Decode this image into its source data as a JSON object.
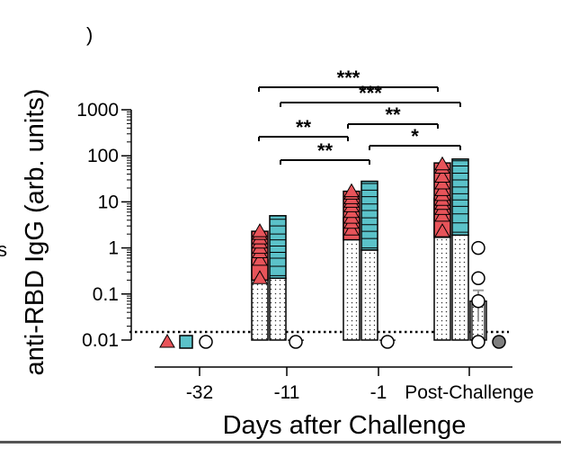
{
  "chart_data": {
    "type": "bar",
    "title": "",
    "xlabel": "Days after Challenge",
    "ylabel": "anti-RBD IgG (arb. units)",
    "yscale": "log",
    "ylim": [
      0.01,
      1000
    ],
    "yticks": [
      {
        "value": 0.01,
        "label": "0.01"
      },
      {
        "value": 0.1,
        "label": "0.1"
      },
      {
        "value": 1,
        "label": "1"
      },
      {
        "value": 10,
        "label": "10"
      },
      {
        "value": 100,
        "label": "100"
      },
      {
        "value": 1000,
        "label": "1000"
      }
    ],
    "categories": [
      "-32",
      "-11",
      "-1",
      "Post-Challenge"
    ],
    "detection_limit": 0.015,
    "grid": false,
    "legend": "none",
    "series": [
      {
        "marker": "triangle",
        "color": "#e8545a",
        "values": [
          0.01,
          0.55,
          4.5,
          12
        ],
        "ranges": [
          null,
          [
            0.2,
            2.3
          ],
          [
            1.5,
            17
          ],
          [
            1.7,
            70
          ]
        ],
        "points": [
          [
            0.01
          ],
          [
            0.22,
            0.55,
            0.8,
            1.0,
            1.3,
            1.6,
            2.0,
            2.3
          ],
          [
            2.5,
            3.5,
            4.5,
            6,
            8,
            10,
            12,
            15,
            17
          ],
          [
            2.3,
            5,
            7,
            9,
            11,
            14,
            18,
            25,
            35,
            55,
            65
          ]
        ]
      },
      {
        "marker": "square",
        "color": "#5bc2c9",
        "values": [
          0.01,
          0.22,
          0.9,
          1.9
        ],
        "ranges": [
          null,
          [
            0.22,
            5
          ],
          [
            0.9,
            28
          ],
          [
            1.9,
            85
          ]
        ],
        "points": [
          [
            0.01
          ],
          [
            0.25,
            0.4,
            0.6,
            0.8,
            1.1,
            1.5,
            2.0,
            3.0,
            4.2
          ],
          [
            1.0,
            1.6,
            2.3,
            3.2,
            4.5,
            6.5,
            9,
            13,
            18,
            25
          ],
          [
            2.2,
            3.5,
            5.5,
            8,
            11,
            15,
            21,
            30,
            42,
            60,
            78
          ]
        ]
      },
      {
        "marker": "open-circle",
        "color": "#ffffff",
        "values": [
          0.01,
          0.01,
          0.01,
          0.07
        ],
        "error": [
          null,
          null,
          null,
          [
            0.025,
            0.12
          ]
        ],
        "points": [
          [
            0.01
          ],
          [
            0.01
          ],
          [
            0.01
          ],
          [
            0.01,
            0.07,
            0.22,
            1.0
          ]
        ]
      },
      {
        "marker": "filled-circle",
        "color": "#7f7f7f",
        "values": [
          null,
          null,
          null,
          0.01
        ],
        "points": [
          [],
          [],
          [],
          [
            0.01
          ]
        ]
      }
    ],
    "significance": [
      {
        "from": 1,
        "to": 2,
        "label": "**",
        "level": 1
      },
      {
        "from": 1,
        "to": 3,
        "label": "***",
        "level": 2
      },
      {
        "from": 2,
        "to": 3,
        "label": "**",
        "level": 1
      },
      {
        "from": 1,
        "to": 3,
        "label": "***",
        "level": 3
      },
      {
        "from": 2,
        "to": 3,
        "label": "**",
        "level": 2
      },
      {
        "from": 2,
        "to": 3,
        "label": "*",
        "level": 1
      }
    ],
    "fragments": {
      "left_edge_text": "s",
      "top_edge_text": ")"
    }
  }
}
